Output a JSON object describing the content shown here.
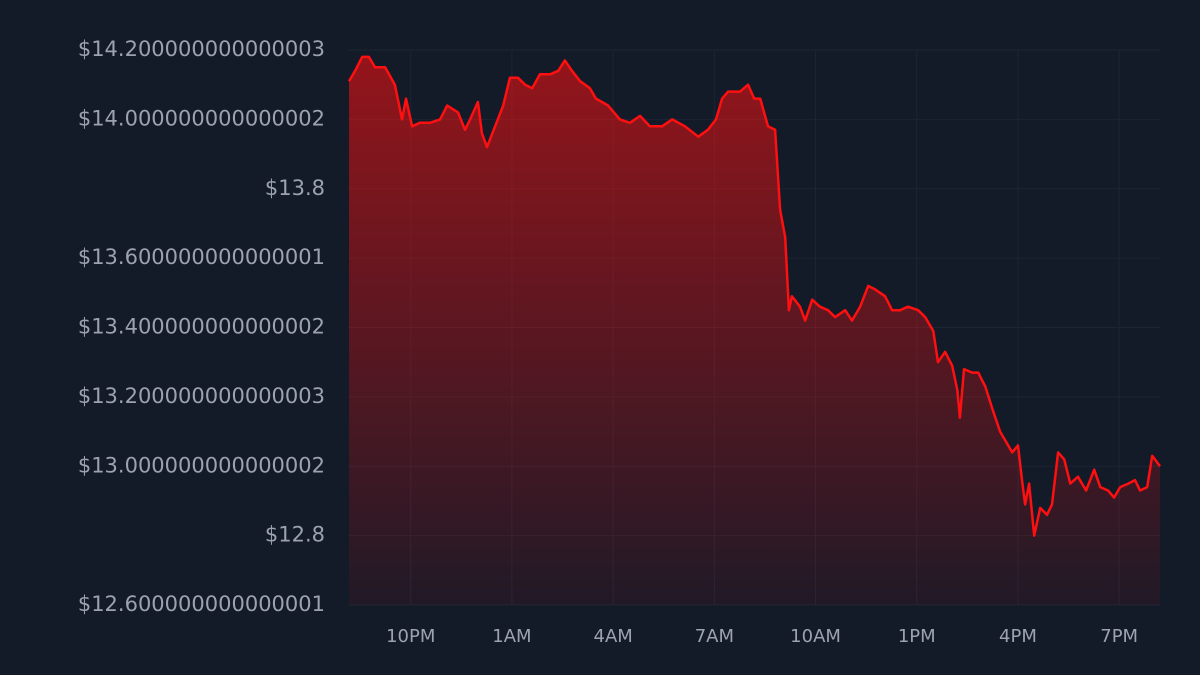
{
  "chart_data": {
    "type": "area",
    "color": "#ff1010",
    "grid": true,
    "ylim": [
      12.6,
      14.2
    ],
    "yticks": [
      {
        "value": 12.6,
        "label": "$12.600000000000001"
      },
      {
        "value": 12.8,
        "label": "$12.8"
      },
      {
        "value": 13.0,
        "label": "$13.000000000000002"
      },
      {
        "value": 13.2,
        "label": "$13.200000000000003"
      },
      {
        "value": 13.4,
        "label": "$13.400000000000002"
      },
      {
        "value": 13.6,
        "label": "$13.600000000000001"
      },
      {
        "value": 13.8,
        "label": "$13.8"
      },
      {
        "value": 14.0,
        "label": "$14.000000000000002"
      },
      {
        "value": 14.2,
        "label": "$14.200000000000003"
      }
    ],
    "xlim": [
      20.17,
      44.21
    ],
    "xticks": [
      {
        "value": 22,
        "label": "10PM"
      },
      {
        "value": 25,
        "label": "1AM"
      },
      {
        "value": 28,
        "label": "4AM"
      },
      {
        "value": 31,
        "label": "7AM"
      },
      {
        "value": 34,
        "label": "10AM"
      },
      {
        "value": 37,
        "label": "1PM"
      },
      {
        "value": 40,
        "label": "4PM"
      },
      {
        "value": 43,
        "label": "7PM"
      }
    ],
    "x": [
      20.17,
      20.35,
      20.56,
      20.76,
      20.94,
      21.24,
      21.53,
      21.74,
      21.86,
      22.04,
      22.27,
      22.57,
      22.87,
      23.08,
      23.4,
      23.61,
      23.76,
      23.99,
      24.11,
      24.26,
      24.5,
      24.74,
      24.94,
      25.18,
      25.39,
      25.6,
      25.83,
      26.13,
      26.37,
      26.57,
      26.78,
      27.02,
      27.31,
      27.49,
      27.85,
      28.2,
      28.5,
      28.8,
      29.09,
      29.45,
      29.75,
      30.13,
      30.52,
      30.81,
      31.05,
      31.23,
      31.41,
      31.76,
      32.0,
      32.18,
      32.36,
      32.59,
      32.8,
      32.95,
      33.1,
      33.21,
      33.3,
      33.54,
      33.69,
      33.9,
      34.13,
      34.37,
      34.58,
      34.88,
      35.08,
      35.32,
      35.56,
      35.76,
      36.06,
      36.27,
      36.51,
      36.74,
      37.04,
      37.25,
      37.49,
      37.63,
      37.84,
      38.05,
      38.2,
      38.28,
      38.4,
      38.64,
      38.82,
      39.03,
      39.26,
      39.47,
      39.65,
      39.83,
      40.0,
      40.12,
      40.21,
      40.33,
      40.48,
      40.66,
      40.86,
      41.01,
      41.19,
      41.37,
      41.55,
      41.78,
      42.02,
      42.26,
      42.44,
      42.67,
      42.85,
      43.03,
      43.27,
      43.47,
      43.62,
      43.83,
      43.98,
      44.21
    ],
    "values": [
      14.11,
      14.14,
      14.18,
      14.18,
      14.15,
      14.15,
      14.1,
      14.0,
      14.06,
      13.98,
      13.99,
      13.99,
      14.0,
      14.04,
      14.02,
      13.97,
      14.0,
      14.05,
      13.96,
      13.92,
      13.98,
      14.04,
      14.12,
      14.12,
      14.1,
      14.09,
      14.13,
      14.13,
      14.14,
      14.17,
      14.14,
      14.11,
      14.09,
      14.06,
      14.04,
      14.0,
      13.99,
      14.01,
      13.98,
      13.98,
      14.0,
      13.98,
      13.95,
      13.97,
      14.0,
      14.06,
      14.08,
      14.08,
      14.1,
      14.06,
      14.06,
      13.98,
      13.97,
      13.74,
      13.66,
      13.45,
      13.49,
      13.46,
      13.42,
      13.48,
      13.46,
      13.45,
      13.43,
      13.45,
      13.42,
      13.46,
      13.52,
      13.51,
      13.49,
      13.45,
      13.45,
      13.46,
      13.45,
      13.43,
      13.39,
      13.3,
      13.33,
      13.29,
      13.22,
      13.14,
      13.28,
      13.27,
      13.27,
      13.23,
      13.16,
      13.1,
      13.07,
      13.04,
      13.06,
      12.96,
      12.89,
      12.95,
      12.8,
      12.88,
      12.86,
      12.89,
      13.04,
      13.02,
      12.95,
      12.97,
      12.93,
      12.99,
      12.94,
      12.93,
      12.91,
      12.94,
      12.95,
      12.96,
      12.93,
      12.94,
      13.03,
      13.0
    ]
  }
}
